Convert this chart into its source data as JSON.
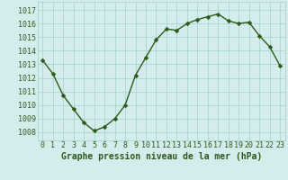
{
  "x": [
    0,
    1,
    2,
    3,
    4,
    5,
    6,
    7,
    8,
    9,
    10,
    11,
    12,
    13,
    14,
    15,
    16,
    17,
    18,
    19,
    20,
    21,
    22,
    23
  ],
  "y": [
    1013.3,
    1012.3,
    1010.7,
    1009.7,
    1008.7,
    1008.1,
    1008.4,
    1009.0,
    1010.0,
    1012.2,
    1013.5,
    1014.8,
    1015.6,
    1015.5,
    1016.0,
    1016.3,
    1016.5,
    1016.7,
    1016.2,
    1016.0,
    1016.1,
    1015.1,
    1014.3,
    1012.9
  ],
  "line_color": "#2d5a1b",
  "marker_color": "#2d5a1b",
  "bg_color": "#d4edec",
  "grid_color": "#aad4d0",
  "xlabel": "Graphe pression niveau de la mer (hPa)",
  "ylabel_ticks": [
    1008,
    1009,
    1010,
    1011,
    1012,
    1013,
    1014,
    1015,
    1016,
    1017
  ],
  "ylim": [
    1007.4,
    1017.6
  ],
  "xlim": [
    -0.5,
    23.5
  ],
  "xtick_labels": [
    "0",
    "1",
    "2",
    "3",
    "4",
    "5",
    "6",
    "7",
    "8",
    "9",
    "10",
    "11",
    "12",
    "13",
    "14",
    "15",
    "16",
    "17",
    "18",
    "19",
    "20",
    "21",
    "22",
    "23"
  ],
  "xlabel_fontsize": 7,
  "tick_fontsize": 6,
  "marker_size": 2.5,
  "linewidth": 1.0
}
